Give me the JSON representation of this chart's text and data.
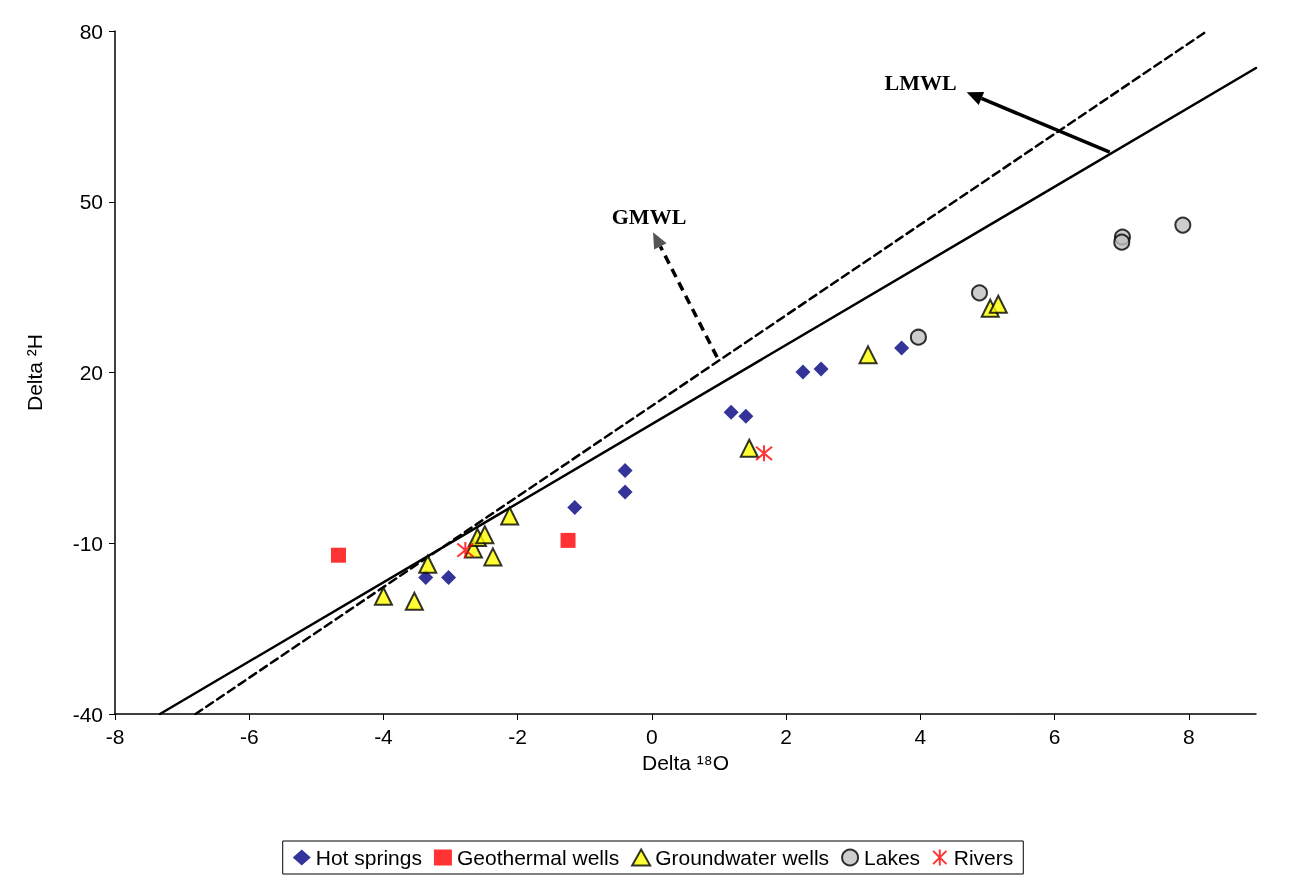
{
  "chart_data": {
    "type": "scatter",
    "xlabel": "Delta ¹⁸O",
    "ylabel": "Delta ²H",
    "xlim": [
      -8,
      9
    ],
    "xticks": [
      -8,
      -6,
      -4,
      -2,
      0,
      2,
      4,
      6,
      8
    ],
    "ylim": [
      -40,
      80
    ],
    "yticks": [
      -40,
      -10,
      20,
      50,
      80
    ],
    "grid": false,
    "legend": "bottom",
    "annotations": [
      {
        "text": "LMWL",
        "x": 6.82,
        "y": 58.7
      },
      {
        "text": "GMWL",
        "x": 0.97,
        "y": 22.7
      }
    ],
    "series": [
      {
        "name": "Hot springs",
        "color": "#000080",
        "marker": "diamond",
        "x": [
          -3.37,
          -3.03,
          -1.15,
          -0.4,
          -0.4,
          1.18,
          1.4,
          2.25,
          2.52,
          3.72
        ],
        "values": [
          -16,
          -16,
          -3.7,
          2.8,
          -1,
          13,
          12.3,
          20.1,
          20.6,
          24.3
        ]
      },
      {
        "name": "Geothermal wells",
        "color": "#ff0000",
        "marker": "square",
        "x": [
          -4.67,
          -1.25
        ],
        "values": [
          -12.1,
          -9.5
        ]
      },
      {
        "name": "Groundwater wells",
        "color": "#ffff00",
        "marker": "triangle",
        "x": [
          -4.0,
          -3.54,
          -3.34,
          -2.66,
          -2.6,
          -2.49,
          -2.37,
          -2.12,
          1.45,
          3.22,
          5.04,
          5.16
        ],
        "values": [
          -19.3,
          -20.2,
          -13.7,
          -11,
          -9,
          -8.5,
          -12.4,
          -5.2,
          6.7,
          23.1,
          31.3,
          32
        ]
      },
      {
        "name": "Lakes",
        "color": "#c0c0c0",
        "marker": "circle",
        "x": [
          3.97,
          4.88,
          7.01,
          7.0,
          7.91
        ],
        "values": [
          26.2,
          34,
          43.8,
          42.9,
          45.9
        ]
      },
      {
        "name": "Rivers",
        "color": "#ff0000",
        "marker": "cross",
        "x": [
          -2.78,
          1.67
        ],
        "values": [
          -11.2,
          5.8
        ]
      },
      {
        "type": "line",
        "color": "#000000",
        "marker": "none",
        "line_style": "solid",
        "x": [
          -7.33,
          9
        ],
        "values": [
          -40,
          73.5
        ]
      },
      {
        "type": "line",
        "color": "#000000",
        "marker": "none",
        "line_style": "dashed",
        "x": [
          -6.8,
          8.27
        ],
        "values": [
          -40,
          80
        ]
      }
    ]
  }
}
